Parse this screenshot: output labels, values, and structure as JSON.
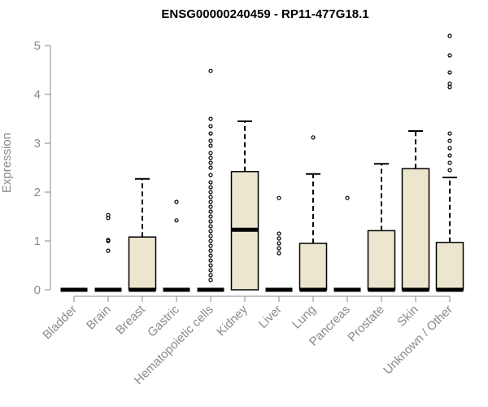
{
  "chart_data": {
    "type": "boxplot",
    "title": "ENSG00000240459 - RP11-477G18.1",
    "xlabel": "",
    "ylabel": "Expression",
    "ylim": [
      0,
      5.2
    ],
    "y_ticks": [
      "0",
      "1",
      "2",
      "3",
      "4",
      "5"
    ],
    "grid": false,
    "colors": {
      "box_fill": "#ede6cf",
      "stroke": "#000000",
      "axis": "#8a8a8a"
    },
    "categories": [
      "Bladder",
      "Brain",
      "Breast",
      "Gastric",
      "Hematopoietic cells",
      "Kidney",
      "Liver",
      "Lung",
      "Pancreas",
      "Prostate",
      "Skin",
      "Unknown / Other"
    ],
    "boxes": [
      {
        "q1": 0,
        "median": 0,
        "q3": 0,
        "whisker_low": 0,
        "whisker_high": 0,
        "outliers": []
      },
      {
        "q1": 0,
        "median": 0,
        "q3": 0,
        "whisker_low": 0,
        "whisker_high": 0,
        "outliers": [
          0.8,
          1.0,
          1.02,
          1.47,
          1.53
        ]
      },
      {
        "q1": 0,
        "median": 0,
        "q3": 1.08,
        "whisker_low": 0,
        "whisker_high": 2.27,
        "outliers": []
      },
      {
        "q1": 0,
        "median": 0,
        "q3": 0,
        "whisker_low": 0,
        "whisker_high": 0,
        "outliers": [
          1.42,
          1.8
        ]
      },
      {
        "q1": 0,
        "median": 0,
        "q3": 0,
        "whisker_low": 0,
        "whisker_high": 0,
        "outliers": [
          0.2,
          0.3,
          0.4,
          0.5,
          0.6,
          0.7,
          0.8,
          0.9,
          1.0,
          1.1,
          1.2,
          1.3,
          1.4,
          1.5,
          1.6,
          1.7,
          1.8,
          1.9,
          2.0,
          2.1,
          2.2,
          2.35,
          2.5,
          2.6,
          2.7,
          2.8,
          2.95,
          3.05,
          3.2,
          3.35,
          3.5,
          4.48
        ]
      },
      {
        "q1": 0,
        "median": 1.23,
        "q3": 2.42,
        "whisker_low": 0,
        "whisker_high": 3.45,
        "outliers": []
      },
      {
        "q1": 0,
        "median": 0,
        "q3": 0,
        "whisker_low": 0,
        "whisker_high": 0,
        "outliers": [
          0.75,
          0.85,
          0.95,
          1.05,
          1.15,
          1.88
        ]
      },
      {
        "q1": 0,
        "median": 0,
        "q3": 0.95,
        "whisker_low": 0,
        "whisker_high": 2.37,
        "outliers": [
          3.12
        ]
      },
      {
        "q1": 0,
        "median": 0,
        "q3": 0,
        "whisker_low": 0,
        "whisker_high": 0,
        "outliers": [
          1.88
        ]
      },
      {
        "q1": 0,
        "median": 0,
        "q3": 1.21,
        "whisker_low": 0,
        "whisker_high": 2.58,
        "outliers": []
      },
      {
        "q1": 0,
        "median": 0,
        "q3": 2.48,
        "whisker_low": 0,
        "whisker_high": 3.25,
        "outliers": []
      },
      {
        "q1": 0,
        "median": 0,
        "q3": 0.97,
        "whisker_low": 0,
        "whisker_high": 2.3,
        "outliers": [
          2.45,
          2.6,
          2.75,
          2.9,
          3.05,
          3.2,
          4.15,
          4.22,
          4.45,
          4.8,
          5.2
        ]
      }
    ]
  }
}
